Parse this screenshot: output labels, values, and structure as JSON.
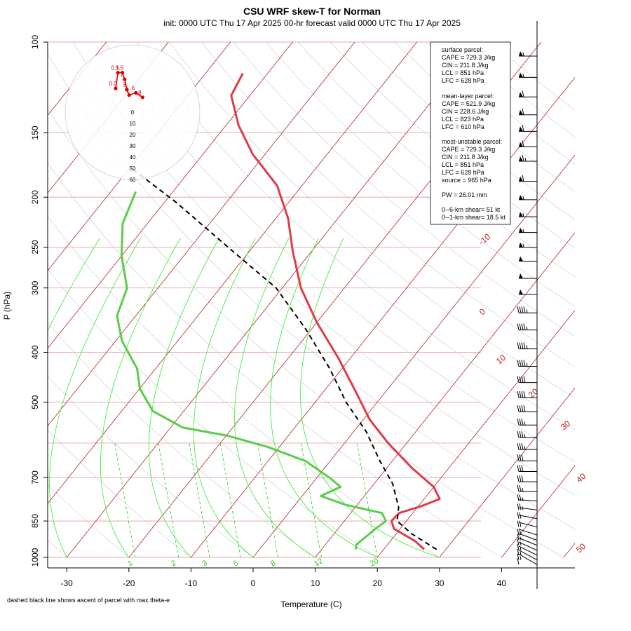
{
  "chart_data": {
    "type": "line",
    "title": "CSU WRF skew-T for Norman",
    "subtitle": "init: 0000 UTC Thu 17 Apr 2025     00-hr forecast valid 0000 UTC Thu 17 Apr 2025",
    "xlabel": "Temperature (C)",
    "ylabel": "P (hPa)",
    "xlim": [
      -33,
      40
    ],
    "ylim": [
      1000,
      100
    ],
    "x_ticks": [
      "-30",
      "-20",
      "-10",
      "0",
      "10",
      "20",
      "30",
      "40"
    ],
    "pressure_ticks": [
      "100",
      "150",
      "200",
      "250",
      "300",
      "400",
      "500",
      "700",
      "850",
      "1000"
    ],
    "pressure_lines": [
      100,
      150,
      200,
      250,
      300,
      400,
      500,
      600,
      700,
      850,
      1000
    ],
    "isotherm_labels": [
      "-10",
      "0",
      "10",
      "20",
      "30",
      "40",
      "50"
    ],
    "mixing_ratio_labels": [
      "1",
      "2",
      "3",
      "5",
      "8",
      "12",
      "20"
    ],
    "series": [
      {
        "name": "Temperature",
        "color": "#dc3c4b",
        "points": [
          [
            26.5,
            965
          ],
          [
            24,
            930
          ],
          [
            19,
            880
          ],
          [
            17.6,
            850
          ],
          [
            17.8,
            820
          ],
          [
            20.5,
            795
          ],
          [
            22.5,
            770
          ],
          [
            20,
            730
          ],
          [
            14,
            670
          ],
          [
            7,
            600
          ],
          [
            1,
            540
          ],
          [
            -5,
            475
          ],
          [
            -12,
            410
          ],
          [
            -20,
            350
          ],
          [
            -27,
            300
          ],
          [
            -33,
            255
          ],
          [
            -38,
            220
          ],
          [
            -44,
            190
          ],
          [
            -52,
            165
          ],
          [
            -58,
            145
          ],
          [
            -63,
            127
          ],
          [
            -64,
            115
          ]
        ]
      },
      {
        "name": "Dewpoint",
        "color": "#5dcb4d",
        "points": [
          [
            15.5,
            965
          ],
          [
            15,
            945
          ],
          [
            16,
            880
          ],
          [
            16.7,
            850
          ],
          [
            15,
            820
          ],
          [
            8,
            790
          ],
          [
            3,
            760
          ],
          [
            5,
            730
          ],
          [
            2,
            700
          ],
          [
            -4,
            650
          ],
          [
            -12,
            610
          ],
          [
            -20,
            580
          ],
          [
            -28,
            560
          ],
          [
            -35,
            520
          ],
          [
            -40,
            470
          ],
          [
            -43,
            430
          ],
          [
            -49,
            380
          ],
          [
            -53,
            340
          ],
          [
            -55,
            300
          ],
          [
            -60,
            260
          ],
          [
            -64,
            225
          ],
          [
            -66,
            195
          ]
        ]
      },
      {
        "name": "Parcel ascent (max theta-e)",
        "color": "#000000",
        "dashed": true,
        "points": [
          [
            28.5,
            965
          ],
          [
            22.5,
            900
          ],
          [
            18.5,
            850
          ],
          [
            17,
            800
          ],
          [
            13,
            720
          ],
          [
            8,
            650
          ],
          [
            2,
            570
          ],
          [
            -5,
            500
          ],
          [
            -12,
            430
          ],
          [
            -21,
            360
          ],
          [
            -31,
            300
          ],
          [
            -44,
            250
          ],
          [
            -58,
            205
          ],
          [
            -70,
            175
          ]
        ]
      }
    ],
    "hodograph": {
      "ring_labels": [
        "0",
        "10",
        "20",
        "30",
        "40",
        "50",
        "60"
      ],
      "point_labels": [
        "0.0",
        "0.5",
        "1.5",
        "2",
        "3",
        "4",
        "6",
        "8"
      ],
      "points": [
        [
          -15,
          5
        ],
        [
          -13,
          19
        ],
        [
          -9,
          19
        ],
        [
          -7,
          13
        ],
        [
          -5,
          4
        ],
        [
          -3,
          -1
        ],
        [
          3,
          1
        ],
        [
          9,
          -3
        ]
      ]
    },
    "wind_barbs": {
      "description": "Wind barbs column (right side)",
      "pressures": [
        100,
        110,
        120,
        130,
        140,
        150,
        160,
        175,
        190,
        205,
        220,
        235,
        250,
        270,
        290,
        315,
        340,
        370,
        400,
        430,
        460,
        490,
        520,
        550,
        580,
        610,
        640,
        670,
        700,
        730,
        760,
        790,
        820,
        850,
        870,
        890,
        910,
        930,
        950,
        970,
        990
      ],
      "speeds_kt": [
        55,
        55,
        60,
        60,
        60,
        60,
        65,
        60,
        55,
        55,
        55,
        55,
        50,
        50,
        50,
        45,
        45,
        45,
        45,
        40,
        40,
        40,
        35,
        35,
        35,
        30,
        30,
        30,
        25,
        25,
        25,
        20,
        20,
        20,
        15,
        15,
        15,
        15,
        15,
        10,
        10
      ]
    }
  },
  "parcel_info": {
    "surface_title": "surface parcel:",
    "surface_cape": "CAPE = 729.3 J/kg",
    "surface_cin": "CIN = 211.8 J/kg",
    "surface_lcl": "LCL = 851 hPa",
    "surface_lfc": "LFC = 628 hPa",
    "ml_title": "mean-layer parcel:",
    "ml_cape": "CAPE = 521.9 J/kg",
    "ml_cin": "CIN = 228.6 J/kg",
    "ml_lcl": "LCL = 823 hPa",
    "ml_lfc": "LFC = 610 hPa",
    "mu_title": "most-unstable parcel:",
    "mu_cape": "CAPE = 729.3 J/kg",
    "mu_cin": "CIN = 211.8 J/kg",
    "mu_lcl": "LCL = 851 hPa",
    "mu_lfc": "LFC = 628 hPa",
    "mu_source": "source = 965 hPa",
    "pw": "PW =  26.01 mm",
    "shear6": "0--6-km shear= 51 kt",
    "shear1": "0--1-km shear= 18.5 kt"
  },
  "footnote": "dashed black line shows ascent of parcel with max theta-e",
  "colors": {
    "isotherm": "#b22222",
    "pressure_line": "#e6a5a5",
    "mixing_ratio": "#22cc22",
    "moist_adiabat": "#44ee44",
    "dry_adiabat": "#c8c8c8"
  }
}
